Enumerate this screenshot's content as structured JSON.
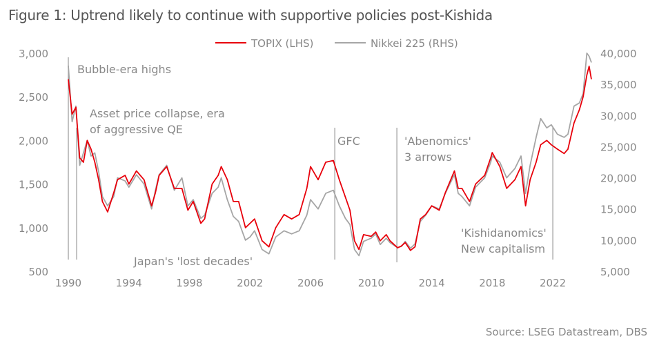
{
  "title": "Figure 1:  Uptrend likely to continue with supportive policies post-Kishida",
  "source": "Source: LSEG Datastream, DBS",
  "chart_data": {
    "type": "line",
    "title": "Figure 1:  Uptrend likely to continue with supportive policies post-Kishida",
    "xlim": [
      1990,
      2024.55
    ],
    "x_ticks": [
      1990,
      1994,
      1998,
      2002,
      2006,
      2010,
      2014,
      2018,
      2022
    ],
    "y_left": {
      "lim": [
        500,
        3000
      ],
      "ticks": [
        500,
        1000,
        1500,
        2000,
        2500,
        3000
      ],
      "tick_labels": [
        "500",
        "1,000",
        "1,500",
        "2,000",
        "2,500",
        "3,000"
      ]
    },
    "y_right": {
      "lim": [
        5000,
        40000
      ],
      "ticks": [
        5000,
        10000,
        15000,
        20000,
        25000,
        30000,
        35000,
        40000
      ],
      "tick_labels": [
        "5,000",
        "10,000",
        "15,000",
        "20,000",
        "25,000",
        "30,000",
        "35,000",
        "40,000"
      ]
    },
    "grid": false,
    "legend_position": "top-center",
    "x": [
      1990.0,
      1990.25,
      1990.5,
      1990.75,
      1991.0,
      1991.25,
      1991.5,
      1991.75,
      1992.0,
      1992.25,
      1992.6,
      1993.0,
      1993.25,
      1993.75,
      1994.0,
      1994.5,
      1995.0,
      1995.5,
      1995.75,
      1996.0,
      1996.5,
      1997.0,
      1997.5,
      1997.9,
      1998.25,
      1998.75,
      1999.0,
      1999.5,
      1999.9,
      2000.1,
      2000.5,
      2000.9,
      2001.25,
      2001.7,
      2002.0,
      2002.3,
      2002.8,
      2003.25,
      2003.7,
      2004.25,
      2004.75,
      2005.25,
      2005.75,
      2006.0,
      2006.5,
      2007.0,
      2007.5,
      2007.9,
      2008.3,
      2008.6,
      2008.9,
      2009.2,
      2009.5,
      2010.0,
      2010.3,
      2010.6,
      2011.0,
      2011.25,
      2011.75,
      2012.0,
      2012.25,
      2012.6,
      2012.9,
      2013.25,
      2013.6,
      2014.0,
      2014.5,
      2014.9,
      2015.5,
      2015.75,
      2016.0,
      2016.5,
      2016.9,
      2017.5,
      2017.9,
      2018.0,
      2018.5,
      2018.95,
      2019.5,
      2019.9,
      2020.2,
      2020.5,
      2020.9,
      2021.2,
      2021.6,
      2021.9,
      2022.3,
      2022.75,
      2023.0,
      2023.4,
      2023.75,
      2024.0,
      2024.25,
      2024.4,
      2024.55
    ],
    "series": [
      {
        "name": "TOPIX (LHS)",
        "axis": "left",
        "color": "#e8000b",
        "values": [
          2700,
          2300,
          2380,
          1800,
          1750,
          2000,
          1900,
          1750,
          1550,
          1300,
          1180,
          1400,
          1550,
          1600,
          1500,
          1650,
          1550,
          1250,
          1400,
          1600,
          1700,
          1450,
          1450,
          1200,
          1300,
          1050,
          1100,
          1500,
          1600,
          1700,
          1550,
          1300,
          1300,
          1000,
          1050,
          1100,
          850,
          780,
          1000,
          1150,
          1100,
          1150,
          1450,
          1700,
          1550,
          1750,
          1770,
          1550,
          1350,
          1200,
          850,
          750,
          920,
          900,
          950,
          850,
          920,
          850,
          770,
          790,
          830,
          740,
          780,
          1100,
          1150,
          1250,
          1200,
          1400,
          1650,
          1450,
          1450,
          1300,
          1500,
          1600,
          1800,
          1860,
          1700,
          1450,
          1550,
          1700,
          1250,
          1550,
          1750,
          1950,
          2000,
          1950,
          1900,
          1850,
          1900,
          2200,
          2350,
          2500,
          2750,
          2850,
          2700
        ]
      },
      {
        "name": "Nikkei 225 (RHS)",
        "axis": "right",
        "color": "#a6a6a6",
        "values": [
          38000,
          29000,
          31500,
          22000,
          24000,
          26000,
          23500,
          24000,
          21000,
          17000,
          15500,
          17000,
          20000,
          19500,
          18500,
          20500,
          19000,
          15000,
          18000,
          20500,
          22000,
          18000,
          20000,
          15500,
          16500,
          13500,
          14000,
          17500,
          18500,
          20000,
          16500,
          13800,
          13000,
          10000,
          10500,
          11500,
          8500,
          7800,
          10500,
          11500,
          11000,
          11500,
          14000,
          16500,
          15000,
          17500,
          18000,
          15500,
          13500,
          12500,
          8500,
          7500,
          9800,
          10300,
          11000,
          9300,
          10300,
          9600,
          8800,
          9000,
          9800,
          8700,
          9400,
          13000,
          14000,
          15500,
          15000,
          17500,
          20500,
          17500,
          17000,
          15500,
          18500,
          20000,
          22500,
          23500,
          22500,
          20000,
          21500,
          23500,
          17500,
          22000,
          26500,
          29500,
          28000,
          28500,
          27000,
          26500,
          27000,
          31500,
          32000,
          33500,
          40000,
          39500,
          38500
        ]
      }
    ],
    "annotations": [
      {
        "text": [
          "Bubble-era highs"
        ],
        "x": 1990.0
      },
      {
        "text": [
          "Asset price collapse, era",
          "of aggressive QE"
        ],
        "x": 1990.6
      },
      {
        "text": [
          "Japan's 'lost decades'"
        ]
      },
      {
        "text": [
          "GFC"
        ],
        "x": 2007.6
      },
      {
        "text": [
          "'Abenomics'",
          "3 arrows"
        ],
        "x": 2011.7
      },
      {
        "text": [
          "'Kishidanomics'",
          "New capitalism"
        ],
        "x": 2022.0
      }
    ]
  }
}
